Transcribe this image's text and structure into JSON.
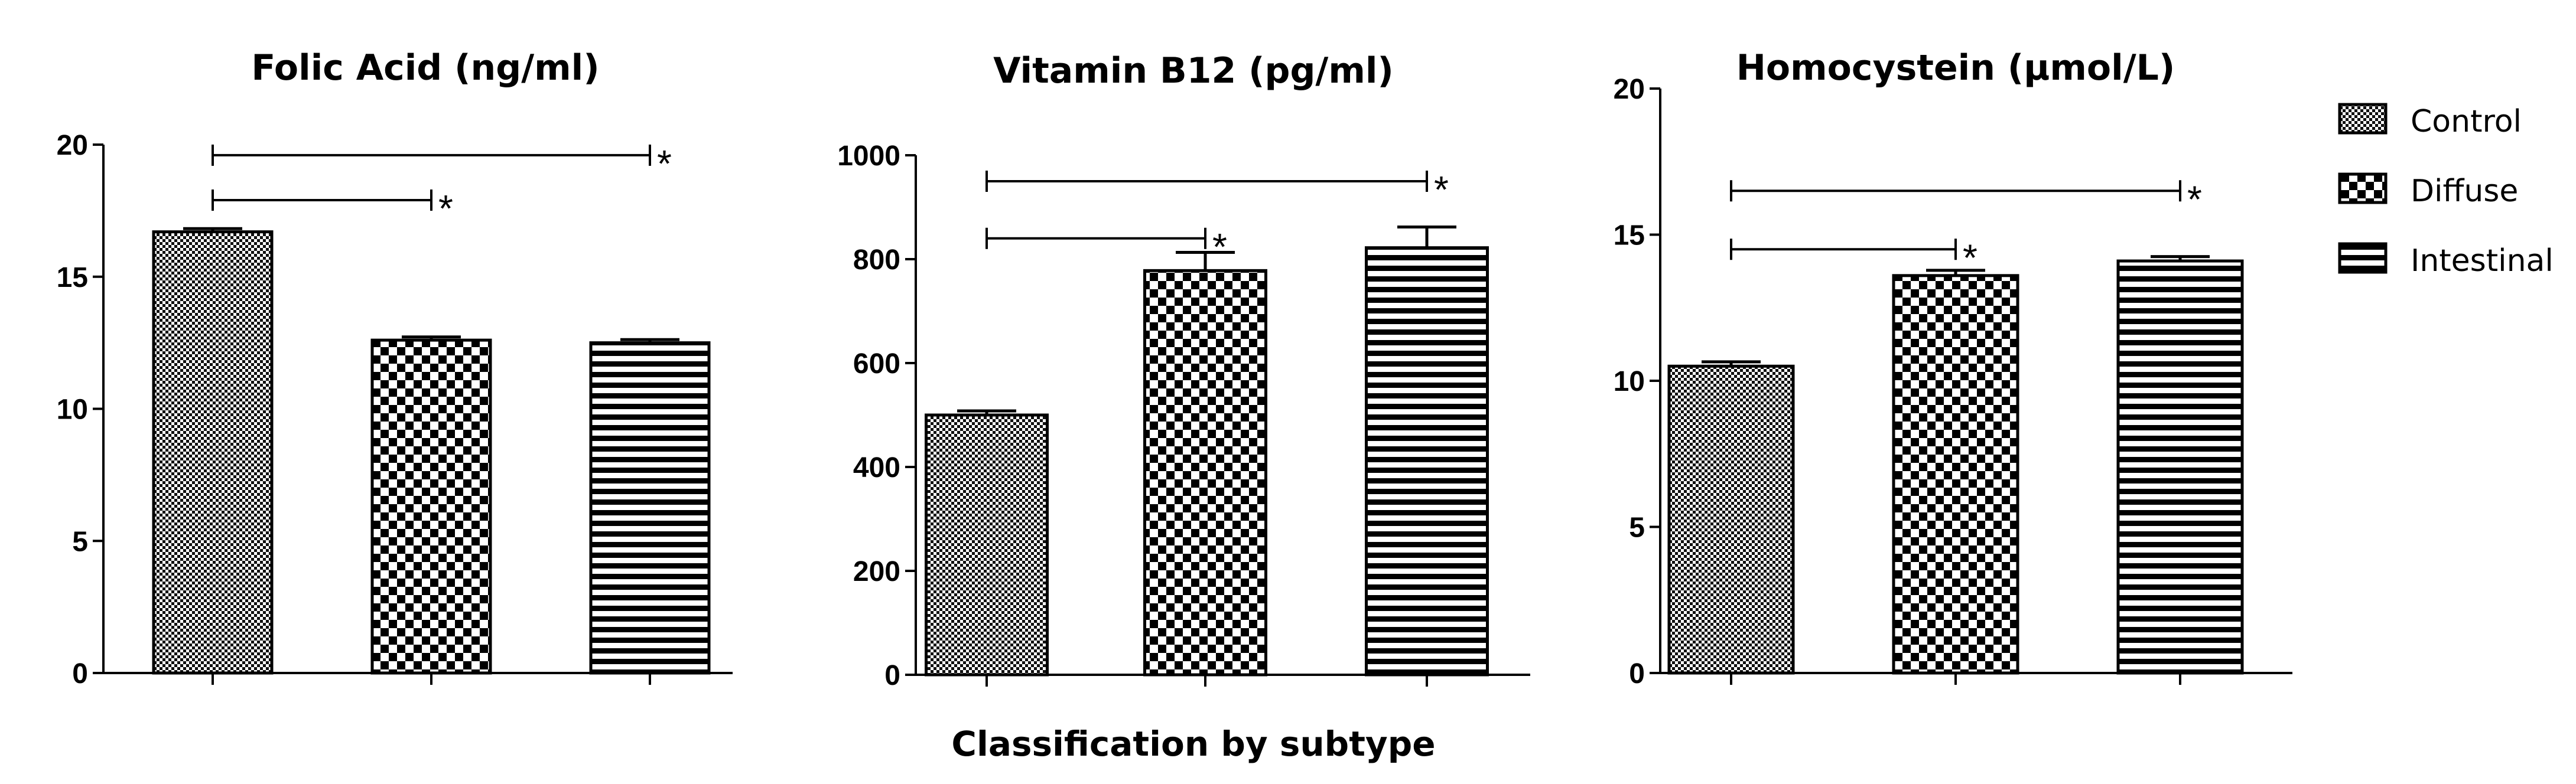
{
  "chart_data": [
    {
      "type": "bar",
      "title": "Folic Acid (ng/ml)",
      "categories": [
        "Control",
        "Diffuse",
        "Intestinal"
      ],
      "values": [
        16.7,
        12.6,
        12.5
      ],
      "errors": [
        0.12,
        0.12,
        0.12
      ],
      "ylim": [
        0,
        20
      ],
      "yticks": [
        "0",
        "5",
        "10",
        "15",
        "20"
      ],
      "ytick_values": [
        0,
        5,
        10,
        15,
        20
      ],
      "xlabel": "",
      "ylabel": "",
      "significance": [
        {
          "from": 0,
          "to": 2,
          "marker": "*",
          "level": 19.6
        },
        {
          "from": 0,
          "to": 1,
          "marker": "*",
          "level": 17.9
        }
      ]
    },
    {
      "type": "bar",
      "title": "Vitamin B12 (pg/ml)",
      "categories": [
        "Control",
        "Diffuse",
        "Intestinal"
      ],
      "values": [
        500,
        778,
        822
      ],
      "errors": [
        8,
        35,
        40
      ],
      "ylim": [
        0,
        1000
      ],
      "yticks": [
        "0",
        "200",
        "400",
        "600",
        "800",
        "1000"
      ],
      "ytick_values": [
        0,
        200,
        400,
        600,
        800,
        1000
      ],
      "xlabel": "Classification by subtype",
      "ylabel": "",
      "significance": [
        {
          "from": 0,
          "to": 2,
          "marker": "*",
          "level": 950
        },
        {
          "from": 0,
          "to": 1,
          "marker": "*",
          "level": 840
        }
      ]
    },
    {
      "type": "bar",
      "title": "Homocystein (µmol/L)",
      "categories": [
        "Control",
        "Diffuse",
        "Intestinal"
      ],
      "values": [
        10.5,
        13.6,
        14.1
      ],
      "errors": [
        0.15,
        0.18,
        0.15
      ],
      "ylim": [
        0,
        20
      ],
      "yticks": [
        "0",
        "5",
        "10",
        "15",
        "20"
      ],
      "ytick_values": [
        0,
        5,
        10,
        15,
        20
      ],
      "xlabel": "",
      "ylabel": "",
      "significance": [
        {
          "from": 0,
          "to": 2,
          "marker": "*",
          "level": 16.5
        },
        {
          "from": 0,
          "to": 1,
          "marker": "*",
          "level": 14.5
        }
      ]
    }
  ],
  "legend": {
    "position": "right",
    "items": [
      {
        "label": "Control",
        "pattern": "fine-checker"
      },
      {
        "label": "Diffuse",
        "pattern": "coarse-checker"
      },
      {
        "label": "Intestinal",
        "pattern": "horizontal-stripes"
      }
    ]
  }
}
